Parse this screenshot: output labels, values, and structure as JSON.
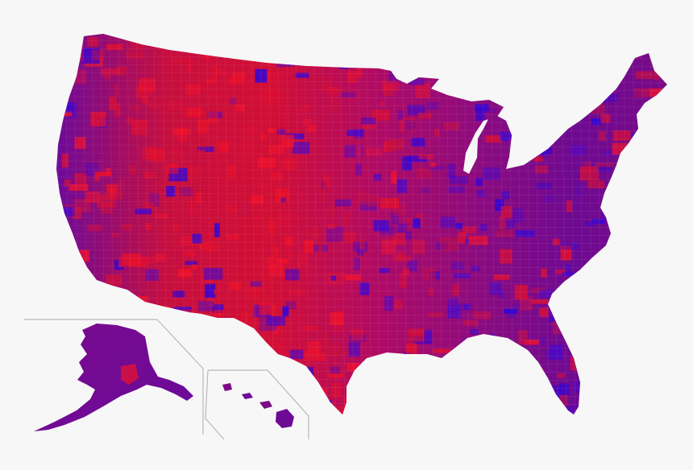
{
  "map": {
    "subject": "us-county-map",
    "colors": {
      "background": "#f7f7f7",
      "red": "#e8102a",
      "blue": "#2a06d8",
      "purple": "#7e0a8c",
      "inset_border": "#b9b9b9"
    },
    "regions": [
      {
        "name": "contiguous-us"
      },
      {
        "name": "alaska-inset"
      },
      {
        "name": "hawaii-inset"
      }
    ]
  }
}
